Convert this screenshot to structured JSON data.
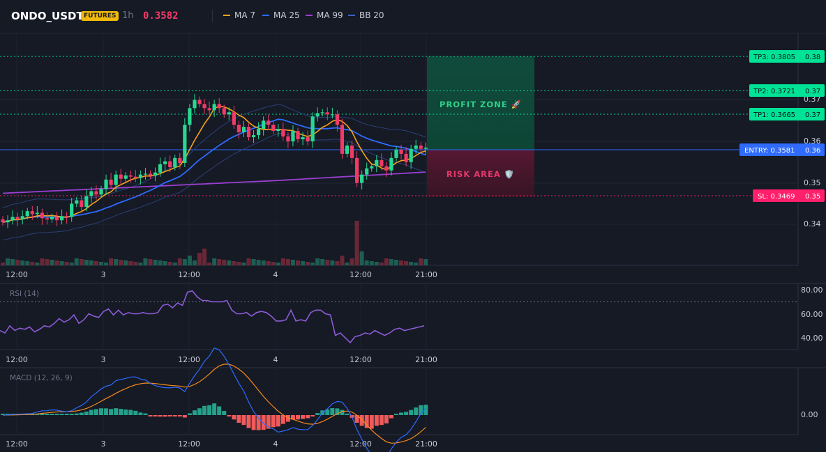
{
  "header": {
    "symbol": "ONDO_USDT",
    "badge": "FUTURES",
    "interval": "1h",
    "price": "0.3582",
    "indicators": [
      {
        "label": "MA 7",
        "color": "#f7a21b"
      },
      {
        "label": "MA 25",
        "color": "#2f6bff"
      },
      {
        "label": "MA 99",
        "color": "#9b3fd0"
      },
      {
        "label": "BB 20",
        "color": "#2d4a9a"
      }
    ]
  },
  "price_axis": [
    "0.37",
    "0.36",
    "0.35",
    "0.34"
  ],
  "time_axis": [
    "12:00",
    "3",
    "12:00",
    "4",
    "12:00",
    "21:00"
  ],
  "levels": {
    "tp3": {
      "label": "TP3: 0.3805",
      "axis": "0.38"
    },
    "tp2": {
      "label": "TP2: 0.3721",
      "axis": "0.37"
    },
    "tp1": {
      "label": "TP1: 0.3665",
      "axis": "0.37"
    },
    "entry": {
      "label": "ENTRY: 0.3581",
      "axis": "0.36"
    },
    "sl": {
      "label": "SL: 0.3469",
      "axis": "0.35"
    }
  },
  "zones": {
    "profit": "PROFIT ZONE 🚀",
    "risk": "RISK AREA 🛡️"
  },
  "rsi": {
    "title": "RSI (14)",
    "axis": [
      "80.00",
      "60.00",
      "40.00"
    ],
    "values": [
      46,
      44,
      50,
      46,
      48,
      47,
      49,
      45,
      47,
      50,
      49,
      52,
      56,
      53,
      55,
      59,
      52,
      55,
      60,
      58,
      57,
      62,
      64,
      59,
      63,
      59,
      61,
      60,
      60,
      61,
      60,
      60,
      61,
      67,
      68,
      65,
      69,
      67,
      78,
      79,
      74,
      71,
      71,
      70,
      70,
      70,
      71,
      63,
      60,
      60,
      61,
      58,
      61,
      62,
      61,
      58,
      54,
      54,
      55,
      63,
      54,
      55,
      54,
      61,
      63,
      63,
      60,
      59,
      42,
      44,
      40,
      36,
      41,
      42,
      44,
      43,
      46,
      44,
      42,
      44,
      47,
      48,
      46,
      47,
      48,
      49,
      50
    ]
  },
  "macd": {
    "title": "MACD (12, 26, 9)",
    "axis": [
      "0.00"
    ]
  },
  "colors": {
    "background": "#151a25",
    "up": "#29d890",
    "down": "#f23a67",
    "tp": "#00e396",
    "entry": "#2f6bff",
    "sl": "#ff1f6a"
  }
}
